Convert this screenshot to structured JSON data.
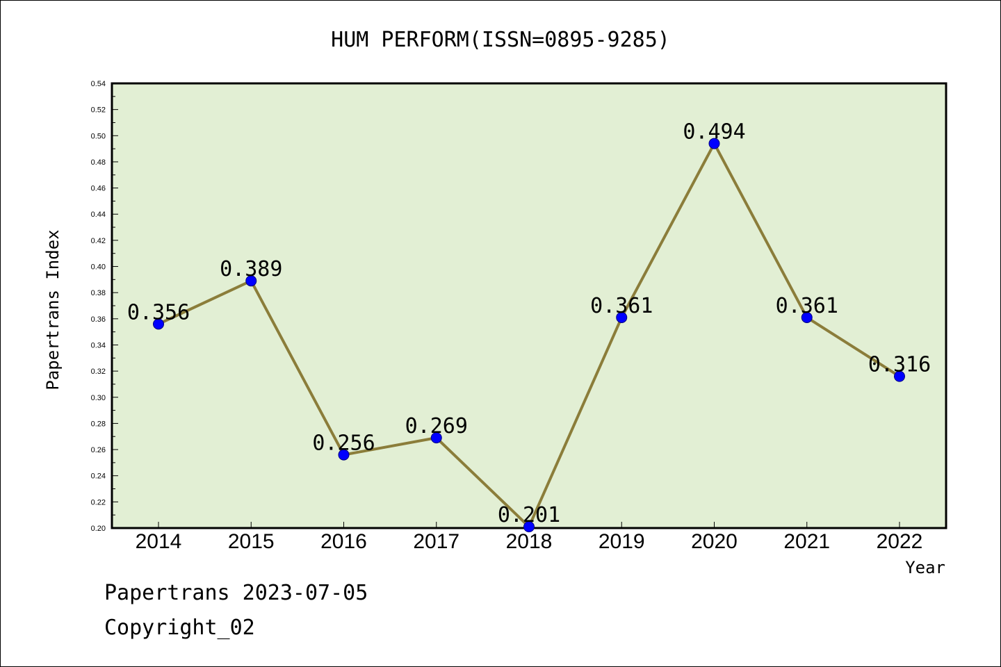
{
  "chart_data": {
    "type": "line",
    "title": "HUM PERFORM(ISSN=0895-9285)",
    "xlabel": "Year",
    "ylabel": "Papertrans Index",
    "categories": [
      "2014",
      "2015",
      "2016",
      "2017",
      "2018",
      "2019",
      "2020",
      "2021",
      "2022"
    ],
    "values": [
      0.356,
      0.389,
      0.256,
      0.269,
      0.201,
      0.361,
      0.494,
      0.361,
      0.316
    ],
    "data_labels": [
      "0.356",
      "0.389",
      "0.256",
      "0.269",
      "0.201",
      "0.361",
      "0.494",
      "0.361",
      "0.316"
    ],
    "ylim": [
      0.2,
      0.54
    ],
    "yticks": [
      "0.20",
      "0.22",
      "0.24",
      "0.26",
      "0.28",
      "0.30",
      "0.32",
      "0.34",
      "0.36",
      "0.38",
      "0.40",
      "0.42",
      "0.44",
      "0.46",
      "0.48",
      "0.50",
      "0.52",
      "0.54"
    ],
    "grid": false,
    "colors": {
      "plot_background": "#e2efd4",
      "line": "#8b7d3a",
      "marker": "#0000ff"
    }
  },
  "footer": {
    "line1": "Papertrans 2023-07-05",
    "line2": "Copyright_02"
  }
}
